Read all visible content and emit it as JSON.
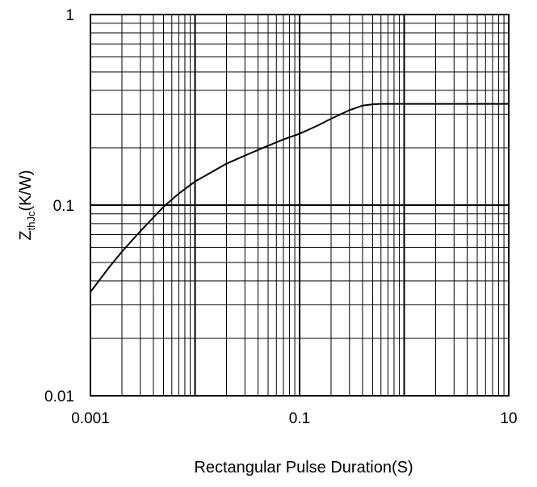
{
  "chart_data": {
    "type": "line",
    "xlabel": "Rectangular Pulse Duration(S)",
    "ylabel_main": "Z",
    "ylabel_sub": "thJc",
    "ylabel_unit": "(K/W)",
    "xscale": "log",
    "yscale": "log",
    "xlim": [
      0.001,
      10
    ],
    "ylim": [
      0.01,
      1
    ],
    "x_ticks": [
      {
        "value": 0.001,
        "label": "0.001"
      },
      {
        "value": 0.1,
        "label": "0.1"
      },
      {
        "value": 10,
        "label": "10"
      }
    ],
    "y_ticks": [
      {
        "value": 0.01,
        "label": "0.01"
      },
      {
        "value": 0.1,
        "label": "0.1"
      },
      {
        "value": 1,
        "label": "1"
      }
    ],
    "grid": true,
    "series": [
      {
        "color": "#000000",
        "x": [
          0.001,
          0.0015,
          0.002,
          0.003,
          0.005,
          0.007,
          0.01,
          0.02,
          0.03,
          0.05,
          0.07,
          0.1,
          0.15,
          0.2,
          0.3,
          0.4,
          0.5,
          0.6,
          0.7,
          1,
          2,
          5,
          10
        ],
        "y": [
          0.035,
          0.047,
          0.057,
          0.073,
          0.098,
          0.115,
          0.133,
          0.165,
          0.182,
          0.205,
          0.221,
          0.237,
          0.262,
          0.284,
          0.315,
          0.333,
          0.338,
          0.34,
          0.34,
          0.34,
          0.34,
          0.34,
          0.34
        ]
      }
    ]
  }
}
